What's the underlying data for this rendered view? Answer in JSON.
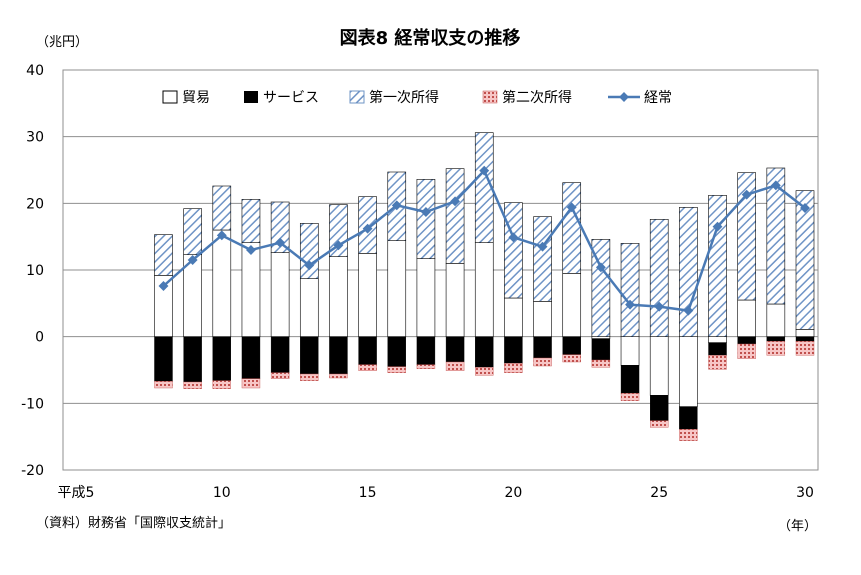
{
  "chart_data": {
    "type": "bar",
    "title": "図表8 経常収支の推移",
    "ylabel": "（兆円）",
    "xunit": "（年）",
    "source": "（資料）財務省「国際収支統計」",
    "ylim": [
      -20,
      40
    ],
    "yticks": [
      "40",
      "30",
      "20",
      "10",
      "0",
      "-10",
      "-20"
    ],
    "xlim": [
      5,
      30
    ],
    "xticks": [
      {
        "value": 5,
        "label": "平成5"
      },
      {
        "value": 10,
        "label": "10"
      },
      {
        "value": 15,
        "label": "15"
      },
      {
        "value": 20,
        "label": "20"
      },
      {
        "value": 25,
        "label": "25"
      },
      {
        "value": 30,
        "label": "30"
      }
    ],
    "grid": true,
    "legend_position": "top",
    "x": [
      8,
      9,
      10,
      11,
      12,
      13,
      14,
      15,
      16,
      17,
      18,
      19,
      20,
      21,
      22,
      23,
      24,
      25,
      26,
      27,
      28,
      29,
      30
    ],
    "series": [
      {
        "name": "貿易",
        "style": "white",
        "values": [
          9.2,
          12.3,
          16.0,
          14.1,
          12.6,
          8.7,
          12.0,
          12.5,
          14.4,
          11.7,
          11.0,
          14.1,
          5.8,
          5.3,
          9.5,
          -0.3,
          -4.3,
          -8.8,
          -10.5,
          -0.9,
          5.5,
          4.9,
          1.1
        ]
      },
      {
        "name": "サービス",
        "style": "black",
        "values": [
          -6.7,
          -6.8,
          -6.6,
          -6.3,
          -5.4,
          -5.6,
          -5.6,
          -4.2,
          -4.5,
          -4.2,
          -3.8,
          -4.6,
          -4.0,
          -3.2,
          -2.7,
          -3.2,
          -4.2,
          -3.8,
          -3.4,
          -1.9,
          -1.1,
          -0.7,
          -0.7
        ]
      },
      {
        "name": "第一次所得",
        "style": "hatch",
        "values": [
          6.1,
          6.9,
          6.6,
          6.5,
          7.6,
          8.3,
          7.8,
          8.5,
          10.3,
          11.9,
          14.2,
          16.5,
          14.3,
          12.7,
          13.6,
          14.6,
          14.0,
          17.6,
          19.4,
          21.2,
          19.1,
          20.4,
          20.8
        ]
      },
      {
        "name": "第二次所得",
        "style": "dots",
        "values": [
          -1.0,
          -1.0,
          -1.2,
          -1.4,
          -0.9,
          -1.0,
          -0.6,
          -0.9,
          -0.9,
          -0.6,
          -1.3,
          -1.2,
          -1.4,
          -1.2,
          -1.1,
          -1.1,
          -1.1,
          -1.0,
          -1.7,
          -2.1,
          -2.2,
          -2.1,
          -2.1
        ]
      },
      {
        "name": "経常",
        "style": "line",
        "color": "#4a7ab5",
        "values": [
          7.6,
          11.5,
          15.2,
          13.0,
          14.1,
          10.7,
          13.7,
          16.2,
          19.7,
          18.7,
          20.3,
          24.9,
          14.9,
          13.5,
          19.4,
          10.4,
          4.8,
          4.5,
          3.9,
          16.5,
          21.3,
          22.7,
          19.3
        ]
      }
    ]
  },
  "colors": {
    "line": "#4a7ab5",
    "hatch": "#6f94c6",
    "grid": "#8f8f8f",
    "dots_bg": "#f7c6c6",
    "dots": "#c0504d"
  }
}
